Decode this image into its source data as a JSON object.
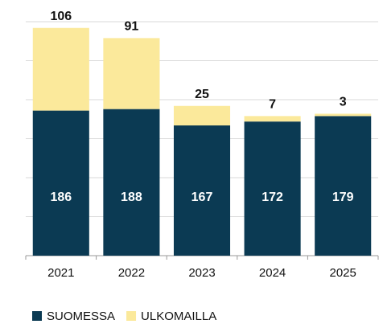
{
  "chart_data": {
    "type": "stacked-bar",
    "categories": [
      "2021",
      "2022",
      "2023",
      "2024",
      "2025"
    ],
    "series": [
      {
        "name": "SUOMESSA",
        "color": "#0b3a53",
        "values": [
          186,
          188,
          167,
          172,
          179
        ]
      },
      {
        "name": "ULKOMAILLA",
        "color": "#fbe99b",
        "values": [
          106,
          91,
          25,
          7,
          3
        ]
      }
    ],
    "ylim": [
      0,
      300
    ],
    "yticks": [
      0,
      50,
      100,
      150,
      200,
      250,
      300
    ],
    "grid": true
  }
}
